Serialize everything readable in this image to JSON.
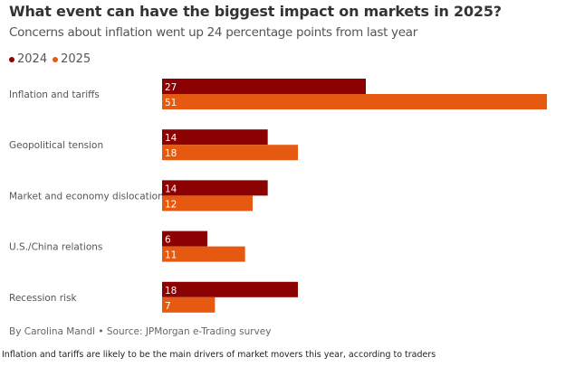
{
  "chart_data": {
    "type": "bar",
    "orientation": "horizontal",
    "title": "What event can have the biggest impact on markets in 2025?",
    "subtitle": "Concerns about inflation went up 24 percentage points from last year",
    "categories": [
      "Inflation and tariffs",
      "Geopolitical tension",
      "Market and economy dislocation",
      "U.S./China relations",
      "Recession risk"
    ],
    "series": [
      {
        "name": "2024",
        "color": "#8b0000",
        "values": [
          27,
          14,
          14,
          6,
          18
        ]
      },
      {
        "name": "2025",
        "color": "#e55a10",
        "values": [
          51,
          18,
          12,
          11,
          7
        ]
      }
    ],
    "xlim": [
      0,
      51
    ],
    "grid": false,
    "legend_position": "top-left",
    "data_labels": true
  },
  "byline": "By Carolina Mandl • Source: JPMorgan e-Trading survey",
  "caption": "Inflation and tariffs are likely to be the main drivers of market movers this year, according to traders"
}
